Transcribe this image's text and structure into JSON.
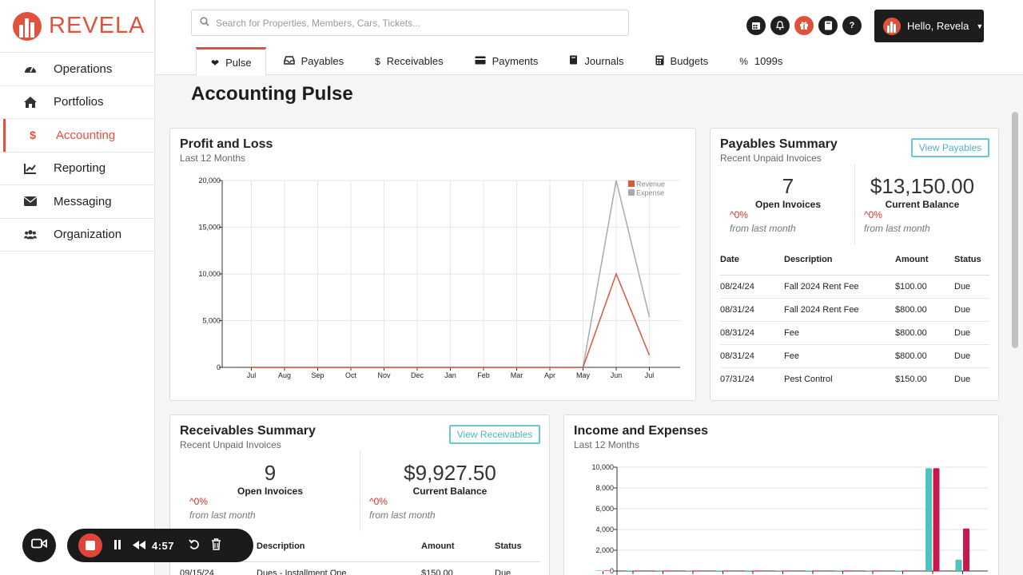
{
  "brand": {
    "name": "REVELA",
    "color": "#e1523d"
  },
  "sidebar": {
    "items": [
      {
        "label": "Operations",
        "icon": "gauge-icon"
      },
      {
        "label": "Portfolios",
        "icon": "home-icon"
      },
      {
        "label": "Accounting",
        "icon": "dollar-icon",
        "active": true
      },
      {
        "label": "Reporting",
        "icon": "line-chart-icon"
      },
      {
        "label": "Messaging",
        "icon": "envelope-icon"
      },
      {
        "label": "Organization",
        "icon": "users-icon"
      }
    ]
  },
  "header": {
    "search_placeholder": "Search for Properties, Members, Cars, Tickets...",
    "icons": [
      "calendar-icon",
      "bell-icon",
      "gift-icon",
      "book-icon",
      "help-icon"
    ],
    "user_label": "Hello, Revela",
    "help_glyph": "?"
  },
  "tabs": [
    {
      "label": "Pulse",
      "icon": "heart-pulse-icon",
      "active": true
    },
    {
      "label": "Payables",
      "icon": "inbox-icon"
    },
    {
      "label": "Receivables",
      "icon": "dollar-icon"
    },
    {
      "label": "Payments",
      "icon": "credit-card-icon"
    },
    {
      "label": "Journals",
      "icon": "book-icon"
    },
    {
      "label": "Budgets",
      "icon": "calculator-icon"
    },
    {
      "label": "1099s",
      "icon": "percent-icon"
    }
  ],
  "page_title": "Accounting Pulse",
  "profit_loss": {
    "title": "Profit and Loss",
    "subtitle": "Last 12 Months"
  },
  "payables": {
    "title": "Payables Summary",
    "subtitle": "Recent Unpaid Invoices",
    "button": "View Payables",
    "open_count": "7",
    "open_label": "Open Invoices",
    "open_change": "^0%",
    "balance": "$13,150.00",
    "balance_label": "Current Balance",
    "balance_change": "^0%",
    "from_text": "from last month",
    "columns": [
      "Date",
      "Description",
      "Amount",
      "Status"
    ],
    "rows": [
      [
        "08/24/24",
        "Fall 2024 Rent Fee",
        "$100.00",
        "Due"
      ],
      [
        "08/31/24",
        "Fall 2024 Rent Fee",
        "$800.00",
        "Due"
      ],
      [
        "08/31/24",
        "Fee",
        "$800.00",
        "Due"
      ],
      [
        "08/31/24",
        "Fee",
        "$800.00",
        "Due"
      ],
      [
        "07/31/24",
        "Pest Control",
        "$150.00",
        "Due"
      ]
    ]
  },
  "receivables": {
    "title": "Receivables Summary",
    "subtitle": "Recent Unpaid Invoices",
    "button": "View Receivables",
    "open_count": "9",
    "open_label": "Open Invoices",
    "open_change": "^0%",
    "balance": "$9,927.50",
    "balance_label": "Current Balance",
    "balance_change": "^0%",
    "from_text": "from last month",
    "columns": [
      "Description",
      "Amount",
      "Status"
    ],
    "rows": [
      [
        "09/15/24",
        "Dues - Installment One",
        "$150.00",
        "Due"
      ]
    ]
  },
  "income_expenses": {
    "title": "Income and Expenses",
    "subtitle": "Last 12 Months"
  },
  "recorder": {
    "time": "4:57"
  },
  "chart_data": [
    {
      "type": "line",
      "title": "Profit and Loss",
      "categories": [
        "Jul",
        "Aug",
        "Sep",
        "Oct",
        "Nov",
        "Dec",
        "Jan",
        "Feb",
        "Mar",
        "Apr",
        "May",
        "Jun",
        "Jul"
      ],
      "ylim": [
        0,
        20000
      ],
      "yticks": [
        "0",
        "5,000",
        "10,000",
        "15,000",
        "20,000"
      ],
      "legend_position": "top-right",
      "series": [
        {
          "name": "Revenue",
          "color": "#d9583f",
          "values": [
            0,
            0,
            0,
            0,
            0,
            0,
            0,
            0,
            0,
            0,
            0,
            10000,
            1300
          ]
        },
        {
          "name": "Expense",
          "color": "#aaaaaa",
          "values": [
            0,
            0,
            0,
            0,
            0,
            0,
            0,
            0,
            0,
            0,
            0,
            20000,
            5400
          ]
        }
      ]
    },
    {
      "type": "bar",
      "title": "Income and Expenses",
      "ylim": [
        0,
        10000
      ],
      "yticks": [
        "0",
        "2,000",
        "4,000",
        "6,000",
        "8,000",
        "10,000"
      ],
      "series": [
        {
          "color": "#4ec3bf",
          "values": [
            0,
            0,
            0,
            0,
            0,
            0,
            0,
            0,
            0,
            0,
            0,
            9900,
            1100
          ]
        },
        {
          "color": "#c8194f",
          "values": [
            0,
            0,
            0,
            0,
            0,
            0,
            0,
            0,
            0,
            0,
            0,
            9900,
            4100
          ]
        }
      ]
    }
  ]
}
